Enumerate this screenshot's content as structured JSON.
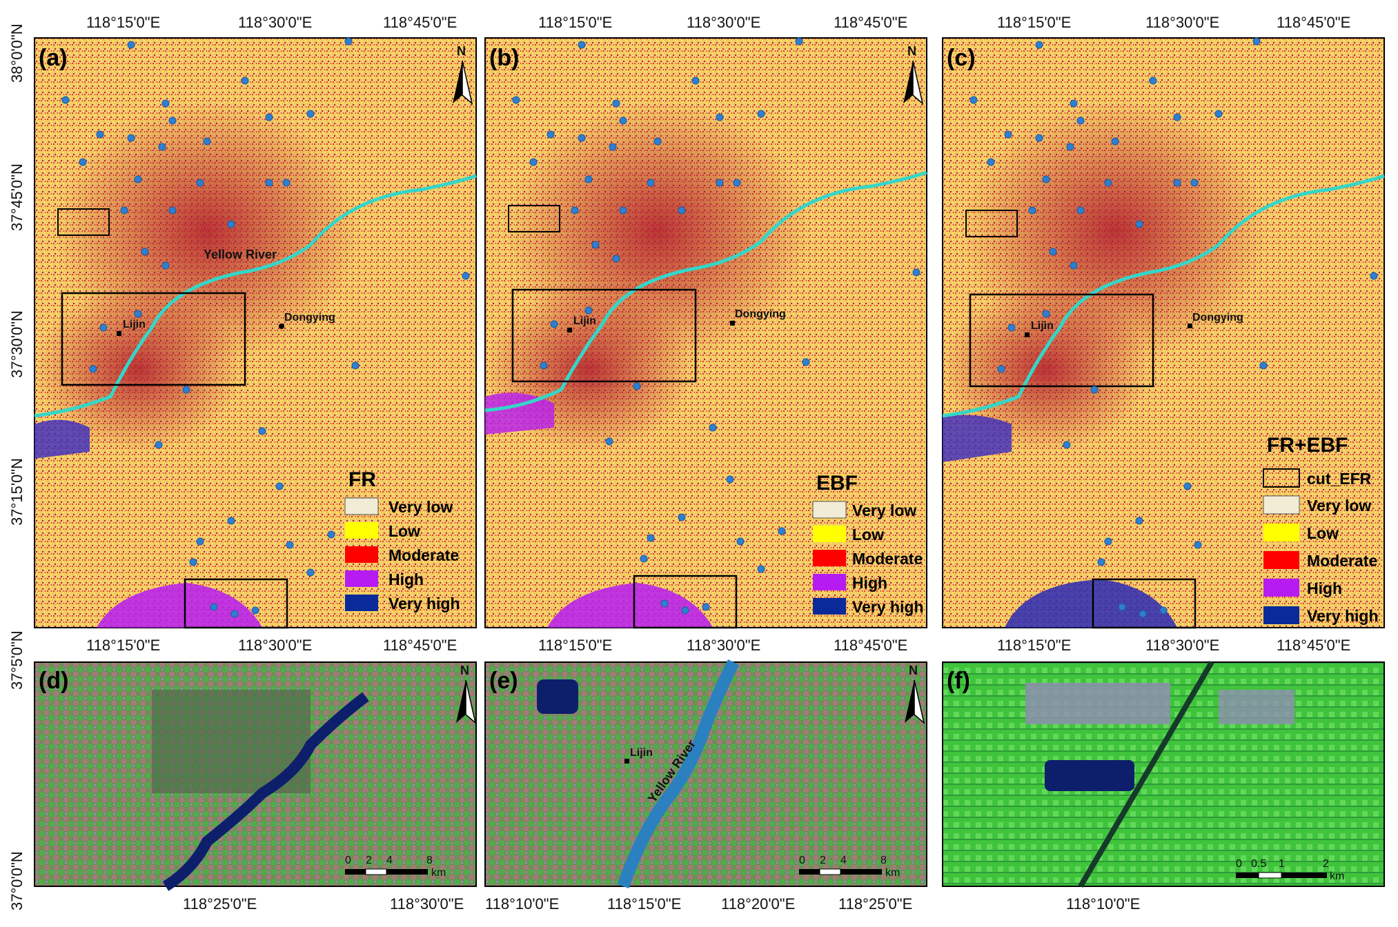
{
  "colors": {
    "very_low": "#f1ecd6",
    "low": "#ffff00",
    "moderate": "#ff0000",
    "high": "#b61cf2",
    "very_high": "#0a2a9a",
    "river": "#35d6c8",
    "points": "#2f7fd0",
    "sat_river": "#0d1f6b",
    "sat_green": "#3fc43c",
    "sat_soil": "#a37b76"
  },
  "icons": [
    "north-arrow-icon",
    "scale-bar-icon"
  ],
  "top_panels": [
    {
      "letter": "(a)",
      "legend_title": "FR",
      "x_ticks": [
        "118°15'0\"E",
        "118°30'0\"E",
        "118°45'0\"E"
      ],
      "north": "N",
      "places": [
        "Lijin",
        "Dongying"
      ],
      "river_label": "Yellow River",
      "legend": [
        "Very low",
        "Low",
        "Moderate",
        "High",
        "Very high"
      ]
    },
    {
      "letter": "(b)",
      "legend_title": "EBF",
      "x_ticks": [
        "118°15'0\"E",
        "118°30'0\"E",
        "118°45'0\"E"
      ],
      "north": "N",
      "places": [
        "Lijin",
        "Dongying"
      ],
      "river_label": "",
      "legend": [
        "Very low",
        "Low",
        "Moderate",
        "High",
        "Very high"
      ]
    },
    {
      "letter": "(c)",
      "legend_title": "FR+EBF",
      "x_ticks": [
        "118°15'0\"E",
        "118°30'0\"E",
        "118°45'0\"E"
      ],
      "north": "",
      "places": [
        "Lijin",
        "Dongying"
      ],
      "river_label": "",
      "legend_extra": "cut_EFR",
      "legend": [
        "Very low",
        "Low",
        "Moderate",
        "High",
        "Very high"
      ]
    }
  ],
  "top_y_ticks": [
    "38°0'0\"N",
    "37°45'0\"N",
    "37°30'0\"N",
    "37°15'0\"N"
  ],
  "bottom_y_ticks": [
    "37°5'0\"N",
    "37°0'0\"N"
  ],
  "bottom_panels": [
    {
      "letter": "(d)",
      "top_ticks": [
        "118°15'0\"E",
        "118°30'0\"E",
        "118°45'0\"E"
      ],
      "bottom_ticks": [
        "118°25'0\"E",
        "118°30'0\"E"
      ],
      "north": "N",
      "scale": [
        "0",
        "2",
        "4",
        "8"
      ],
      "scale_unit": "km"
    },
    {
      "letter": "(e)",
      "top_ticks": [
        "118°15'0\"E",
        "118°30'0\"E",
        "118°45'0\"E"
      ],
      "bottom_ticks": [
        "118°10'0\"E",
        "118°15'0\"E",
        "118°20'0\"E",
        "118°25'0\"E"
      ],
      "north": "N",
      "place": "Lijin",
      "river_label": "Yellow River",
      "scale": [
        "0",
        "2",
        "4",
        "8"
      ],
      "scale_unit": "km"
    },
    {
      "letter": "(f)",
      "top_ticks": [
        "118°15'0\"E",
        "118°30'0\"E",
        "118°45'0\"E"
      ],
      "bottom_ticks": [
        "118°10'0\"E"
      ],
      "north": "",
      "scale": [
        "0",
        "0.5",
        "1",
        "2"
      ],
      "scale_unit": "km"
    }
  ]
}
